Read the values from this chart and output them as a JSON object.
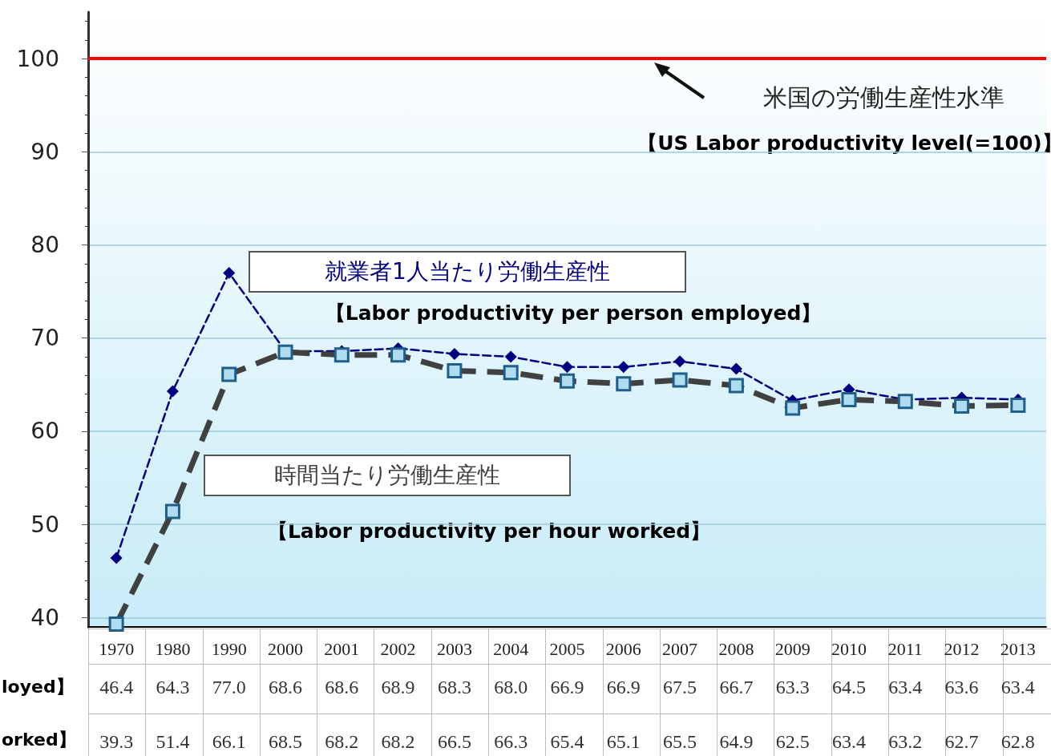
{
  "chart_data": {
    "type": "line",
    "categories": [
      "1970",
      "1980",
      "1990",
      "2000",
      "2001",
      "2002",
      "2003",
      "2004",
      "2005",
      "2006",
      "2007",
      "2008",
      "2009",
      "2010",
      "2011",
      "2012",
      "2013"
    ],
    "series": [
      {
        "name": "就業者1人当たり労働生産性",
        "color": "#000080",
        "marker": "diamond",
        "line_style": "dashed",
        "values": [
          46.4,
          64.3,
          77.0,
          68.6,
          68.6,
          68.9,
          68.3,
          68.0,
          66.9,
          66.9,
          67.5,
          66.7,
          63.3,
          64.5,
          63.4,
          63.6,
          63.4
        ],
        "value_labels": [
          "46.4",
          "64.3",
          "77.0",
          "68.6",
          "68.6",
          "68.9",
          "68.3",
          "68.0",
          "66.9",
          "66.9",
          "67.5",
          "66.7",
          "63.3",
          "64.5",
          "63.4",
          "63.6",
          "63.4"
        ]
      },
      {
        "name": "時間当たり労働生産性",
        "color": "#404040",
        "marker": "square",
        "line_style": "dashed",
        "values": [
          39.3,
          51.4,
          66.1,
          68.5,
          68.2,
          68.2,
          66.5,
          66.3,
          65.4,
          65.1,
          65.5,
          64.9,
          62.5,
          63.4,
          63.2,
          62.7,
          62.8
        ],
        "value_labels": [
          "39.3",
          "51.4",
          "66.1",
          "68.5",
          "68.2",
          "68.2",
          "66.5",
          "66.3",
          "65.4",
          "65.1",
          "65.5",
          "64.9",
          "62.5",
          "63.4",
          "63.2",
          "62.7",
          "62.8"
        ]
      }
    ],
    "ylim": [
      39,
      105
    ],
    "yticks": [
      40,
      50,
      60,
      70,
      80,
      90,
      100
    ],
    "grid": "y",
    "legend": false,
    "ref_lines": [
      {
        "axis": "y",
        "value": 100,
        "label": "米国の労働生産性水準",
        "color": "#ff0000"
      }
    ],
    "annotations": [
      "【US Labor productivity level(=100)】",
      "【Labor productivity per person employed】",
      "【Labor productivity per hour worked】",
      "loyed】",
      "orked】"
    ]
  }
}
